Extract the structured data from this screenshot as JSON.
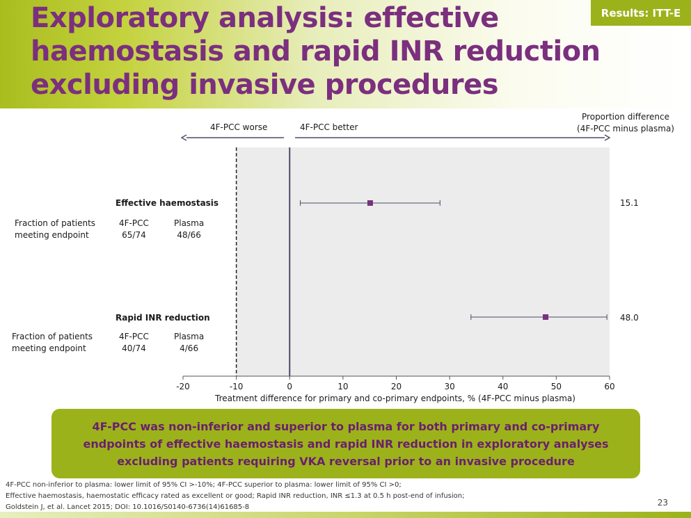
{
  "header": {
    "title_lines": [
      "Exploratory analysis: effective",
      "haemostasis and rapid INR reduction",
      "excluding invasive procedures"
    ],
    "badge": "Results: ITT-E"
  },
  "labels": {
    "worse": "4F-PCC worse",
    "better": "4F-PCC better",
    "prop_diff_line1": "Proportion difference",
    "prop_diff_line2": "(4F-PCC minus plasma)"
  },
  "endpoints": [
    {
      "name": "Effective haemostasis",
      "row_label_1": "Fraction of patients",
      "row_label_2": "meeting endpoint",
      "pcc_label": "4F-PCC",
      "pcc_value": "65/74",
      "plasma_label": "Plasma",
      "plasma_value": "48/66",
      "difference": "15.1"
    },
    {
      "name": "Rapid INR reduction",
      "row_label_1": "Fraction of patients",
      "row_label_2": "meeting endpoint",
      "pcc_label": "4F-PCC",
      "pcc_value": "40/74",
      "plasma_label": "Plasma",
      "plasma_value": "4/66",
      "difference": "48.0"
    }
  ],
  "chart_data": {
    "type": "scatter",
    "xlabel": "Treatment difference for primary and co-primary endpoints, % (4F-PCC minus plasma)",
    "xlim": [
      -20,
      60
    ],
    "xticks": [
      "-20",
      "-10",
      "0",
      "10",
      "20",
      "30",
      "40",
      "50",
      "60"
    ],
    "reference_lines": {
      "zero": 0,
      "noninferiority_margin": -10
    },
    "shaded_region": [
      -10,
      60
    ],
    "series": [
      {
        "points": [
          {
            "category": "Effective haemostasis",
            "x": 15.1,
            "ci": [
              2.0,
              28.2
            ]
          },
          {
            "category": "Rapid INR reduction",
            "x": 48.0,
            "ci": [
              34.0,
              59.5
            ]
          }
        ]
      }
    ],
    "colors": {
      "marker": "#7b2f7e",
      "shade": "#ececec"
    }
  },
  "summary": "4F-PCC was non-inferior and superior to plasma for both primary and co-primary endpoints of effective haemostasis and rapid INR reduction in exploratory analyses excluding patients requiring VKA reversal prior to an invasive procedure",
  "footnotes": [
    "4F-PCC non-inferior to plasma: lower limit of 95% CI >-10%; 4F-PCC superior to plasma: lower limit of 95% CI >0;",
    "Effective haemostasis, haemostatic efficacy rated as excellent or good; Rapid INR reduction, INR ≤1.3 at 0.5 h post-end of infusion;",
    "Goldstein J, et al. Lancet 2015; DOI: 10.1016/S0140-6736(14)61685-8"
  ],
  "page_number": "23"
}
